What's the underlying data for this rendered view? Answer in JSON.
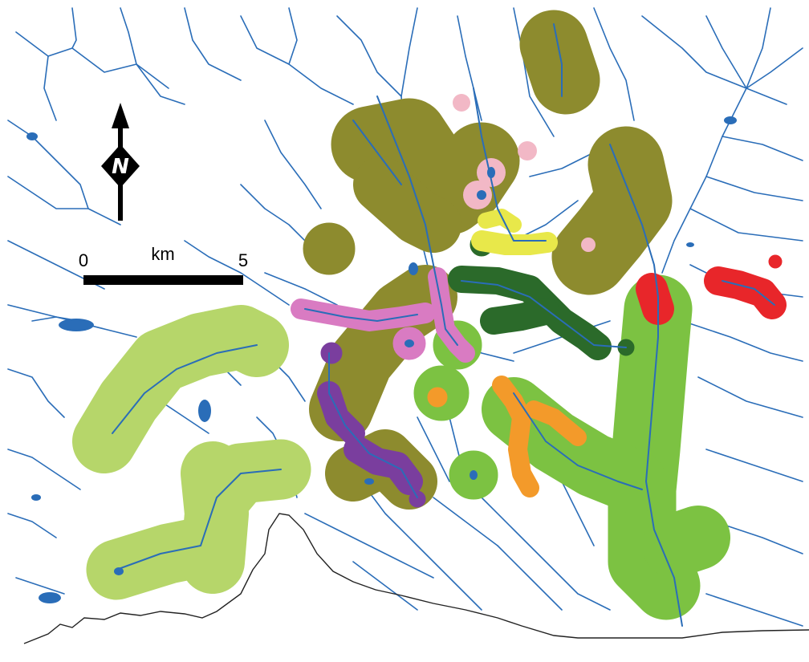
{
  "legend": {
    "north_arrow_label": "N",
    "scale_start": "0",
    "scale_end": "5",
    "scale_unit": "km"
  },
  "colors": {
    "river": "#2a6db8",
    "olive": "#8d8b2e",
    "light_green": "#b6d66a",
    "green": "#7cc242",
    "dark_green": "#2b6a2a",
    "pink": "#f2b8c6",
    "magenta": "#d97bc2",
    "purple": "#7a3e9e",
    "orange": "#f39a2a",
    "yellow": "#e8e84a",
    "red": "#e8262a",
    "boundary": "#222222"
  }
}
